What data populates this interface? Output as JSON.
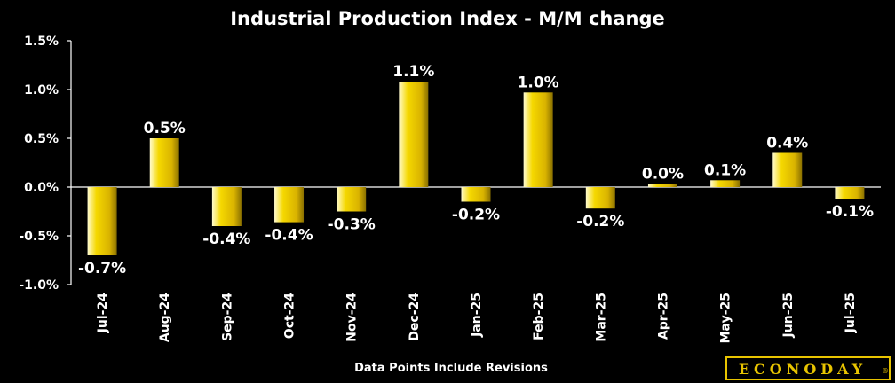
{
  "chart_data": {
    "type": "bar",
    "title": "Industrial Production Index - M/M change",
    "categories": [
      "Jul-24",
      "Aug-24",
      "Sep-24",
      "Oct-24",
      "Nov-24",
      "Dec-24",
      "Jan-25",
      "Feb-25",
      "Mar-25",
      "Apr-25",
      "May-25",
      "Jun-25",
      "Jul-25"
    ],
    "values": [
      -0.7,
      0.5,
      -0.4,
      -0.36,
      -0.25,
      1.08,
      -0.15,
      0.97,
      -0.22,
      0.03,
      0.07,
      0.35,
      -0.12
    ],
    "data_labels": [
      "-0.7%",
      "0.5%",
      "-0.4%",
      "-0.4%",
      "-0.3%",
      "1.1%",
      "-0.2%",
      "1.0%",
      "-0.2%",
      "0.0%",
      "0.1%",
      "0.4%",
      "-0.1%"
    ],
    "yticks": [
      1.5,
      1.0,
      0.5,
      0.0,
      -0.5,
      -1.0
    ],
    "ytick_labels": [
      "1.5%",
      "1.0%",
      "0.5%",
      "0.0%",
      "-0.5%",
      "-1.0%"
    ],
    "ylim": [
      -1.0,
      1.5
    ],
    "xlabel": "",
    "ylabel": "",
    "grid": false,
    "bar_color": "#e8c400",
    "bar_highlight": "#fff6b0",
    "bar_shadow": "#8a7000"
  },
  "footnote": "Data Points Include Revisions",
  "logo": {
    "text": "ECONODAY",
    "mark": "®",
    "color": "#e8c400"
  }
}
